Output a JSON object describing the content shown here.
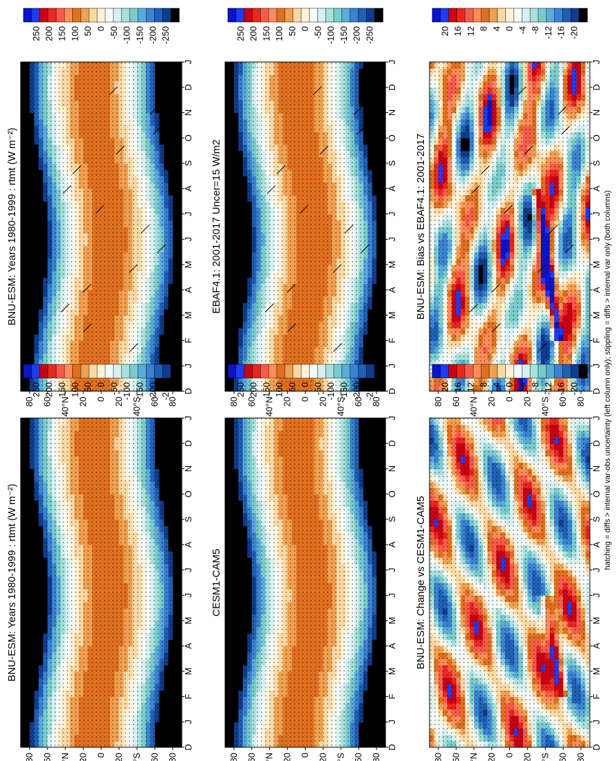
{
  "chart_data": {
    "type": "heatmap",
    "variable": "rtmt",
    "footnote": "hatching = diffs > internal var-obs uncertainty (left column only); stippling = diffs > internal var only (both columns)",
    "month_ticks": [
      "D",
      "J",
      "F",
      "M",
      "A",
      "M",
      "J",
      "J",
      "A",
      "S",
      "O",
      "N",
      "D",
      "J"
    ],
    "lat_ticks": [
      "80",
      "60",
      "40°N",
      "20",
      "0",
      "20",
      "40°S",
      "60",
      "80"
    ],
    "abs_scale": {
      "levels": [
        "250",
        "200",
        "150",
        "100",
        "50",
        "0",
        "-50",
        "-100",
        "-150",
        "-200",
        "-250"
      ],
      "colors": [
        "#0a14c8",
        "#1e3cf0",
        "#c80014",
        "#e8281e",
        "#fa5a4b",
        "#ff8c5a",
        "#e07020",
        "#f0a050",
        "#fcd9a4",
        "#fff2d8",
        "#f4fbfb",
        "#d8f0f0",
        "#a8e0dc",
        "#78cccc",
        "#5aaadc",
        "#3c82d2",
        "#2060b4",
        "#103c8c",
        "#000000"
      ]
    },
    "diff_scale": {
      "levels": [
        "20",
        "16",
        "12",
        "8",
        "4",
        "0",
        "-4",
        "-8",
        "-12",
        "-16",
        "-20"
      ],
      "colors": [
        "#0a14c8",
        "#1e3cf0",
        "#c80014",
        "#e8281e",
        "#fa5a4b",
        "#ff8c5a",
        "#e07020",
        "#f0a050",
        "#fcd9a4",
        "#fff2d8",
        "#f4fbfb",
        "#d8f0f0",
        "#a8e0dc",
        "#78cccc",
        "#5aaadc",
        "#3c82d2",
        "#2060b4",
        "#103c8c",
        "#000000"
      ]
    },
    "panels": [
      {
        "id": "p1",
        "title": "BNU-ESM: Years 1980-1999 : rtmt (W m⁻²)",
        "scale": "abs",
        "kind": "abs",
        "hatch": true
      },
      {
        "id": "p2",
        "title": "BNU-ESM: Years 1980-1999 : rtmt (W m⁻²)",
        "scale": "abs",
        "kind": "abs",
        "hatch": false
      },
      {
        "id": "p3",
        "title": "EBAF4.1: 2001-2017 Uncer=15 W/m2",
        "scale": "abs",
        "kind": "abs",
        "hatch": true
      },
      {
        "id": "p4",
        "title": "CESM1-CAM5",
        "scale": "abs",
        "kind": "abs",
        "hatch": false
      },
      {
        "id": "p5",
        "title": "BNU-ESM: Bias vs EBAF4.1: 2001-2017",
        "scale": "diff",
        "kind": "bias",
        "hatch": true
      },
      {
        "id": "p6",
        "title": "BNU-ESM: Change vs CESM1-CAM5",
        "scale": "diff",
        "kind": "change",
        "hatch": false
      }
    ]
  }
}
